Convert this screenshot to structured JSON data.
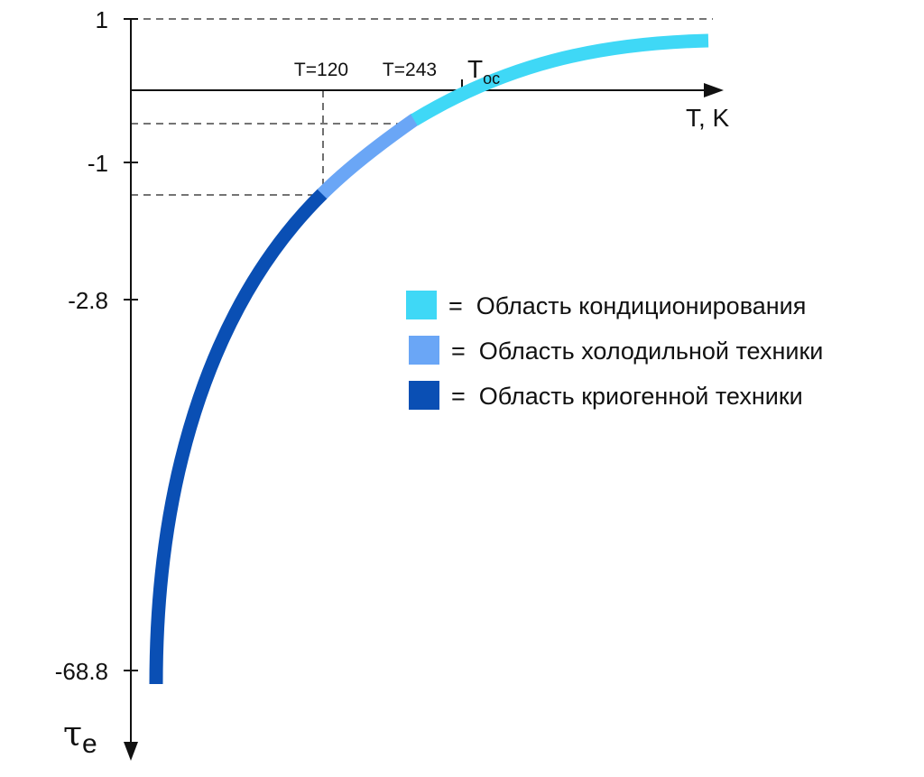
{
  "chart_data": {
    "type": "line",
    "title": "",
    "xlabel": "T, K",
    "ylabel": "τ",
    "ylabel_subscript": "e",
    "y_ticks": [
      "1",
      "-1",
      "-2.8",
      "-68.8"
    ],
    "x_markers": [
      {
        "label": "T=120",
        "tau": -1.45
      },
      {
        "label": "T=243",
        "tau": -0.45
      },
      {
        "label": "T",
        "label_sub": "ос",
        "tau": 0
      }
    ],
    "series": [
      {
        "region": "cryogenic",
        "color": "#0a4fb4"
      },
      {
        "region": "refrigeration",
        "color": "#6aa6f6"
      },
      {
        "region": "conditioning",
        "color": "#3fd8f6"
      }
    ],
    "legend": [
      {
        "color": "#3fd8f6",
        "text": "=  Область кондиционирования"
      },
      {
        "color": "#6aa6f6",
        "text": "=  Область холодильной техники"
      },
      {
        "color": "#0a4fb4",
        "text": "=  Область криогенной техники"
      }
    ],
    "grid": false
  }
}
